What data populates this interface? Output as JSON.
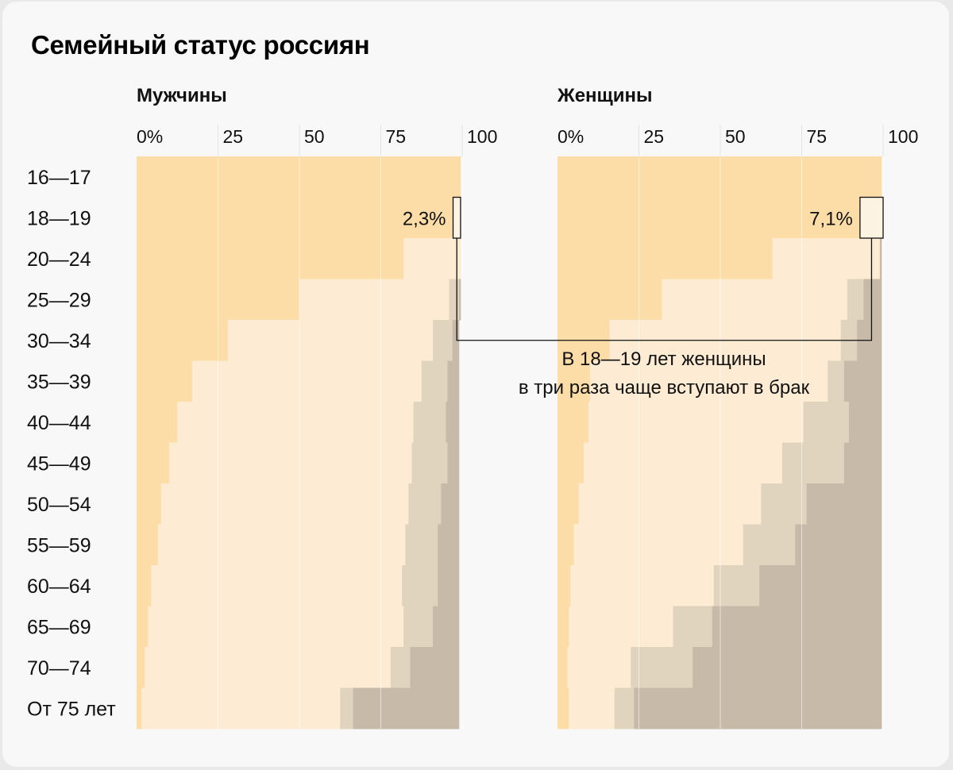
{
  "title": "Семейный статус россиян",
  "chart_data": {
    "type": "bar",
    "stacked": true,
    "orientation": "horizontal",
    "title": "Семейный статус россиян",
    "xlim": [
      0,
      100
    ],
    "tick_labels": [
      "0%",
      "25",
      "50",
      "75",
      "100"
    ],
    "tick_values": [
      0,
      25,
      50,
      75,
      100
    ],
    "grid": true,
    "categories": [
      "16—17",
      "18—19",
      "20—24",
      "25—29",
      "30—34",
      "35—39",
      "40—44",
      "45—49",
      "50—54",
      "55—59",
      "60—64",
      "65—69",
      "70—74",
      "От 75 лет"
    ],
    "colors": [
      "#fcdca7",
      "#fdecd3",
      "#e1d4bf",
      "#c8baa8"
    ],
    "panels": [
      {
        "name": "Мужчины",
        "series": [
          {
            "values": [
              99.5,
              97.2,
              82,
              50,
              28,
              17,
              12.5,
              10,
              7.5,
              6.5,
              4.5,
              3.5,
              2.5,
              1.5
            ]
          },
          {
            "values": [
              0,
              0,
              17.5,
              46,
              63,
              70.5,
              72.5,
              74.5,
              76,
              76,
              77,
              78.5,
              75.5,
              61
            ]
          },
          {
            "values": [
              0,
              0,
              0,
              3,
              6,
              8,
              10,
              11,
              10,
              10,
              11,
              9,
              6,
              4
            ]
          },
          {
            "values": [
              0,
              0,
              0,
              0.5,
              2,
              3.5,
              4,
              3.5,
              5.5,
              6.5,
              6.5,
              8,
              15,
              32.5
            ]
          }
        ],
        "annotation": {
          "row": "18—19",
          "value": 2.3,
          "label": "2,3%"
        }
      },
      {
        "name": "Женщины",
        "series": [
          {
            "values": [
              99.5,
              92.9,
              66,
              32,
              16,
              10,
              9.5,
              8,
              6.5,
              5,
              4,
              3.5,
              3,
              3.5
            ]
          },
          {
            "values": [
              0,
              0,
              33,
              57,
              71,
              73,
              66,
              61,
              56,
              52,
              44,
              32,
              19.5,
              14
            ]
          },
          {
            "values": [
              0,
              0,
              0,
              5,
              5,
              5,
              14,
              19,
              14,
              16,
              14,
              12,
              19,
              6
            ]
          },
          {
            "values": [
              0,
              0,
              0.5,
              5.5,
              7.5,
              11.5,
              10,
              11.5,
              23,
              26.5,
              37.5,
              52,
              58,
              76
            ]
          }
        ],
        "annotation": {
          "row": "18—19",
          "value": 7.1,
          "label": "7,1%"
        }
      }
    ],
    "callout": "В 18—19 лет женщины\nв три раза чаще вступают в брак"
  }
}
